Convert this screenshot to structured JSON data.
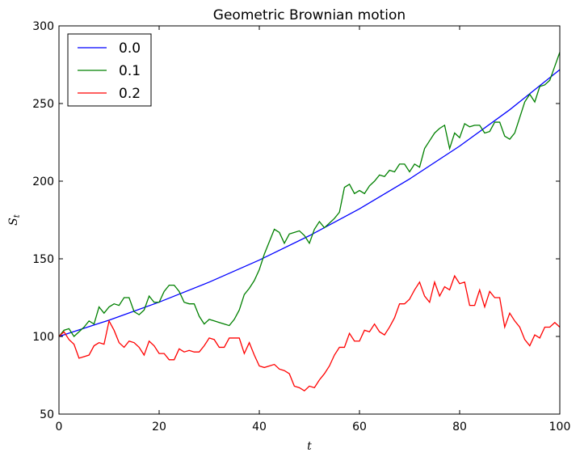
{
  "chart_data": {
    "type": "line",
    "title": "Geometric Brownian motion",
    "xlabel": "t",
    "ylabel_main": "S",
    "ylabel_sub": "t",
    "xlim": [
      0,
      100
    ],
    "ylim": [
      50,
      300
    ],
    "xticks": [
      0,
      20,
      40,
      60,
      80,
      100
    ],
    "yticks": [
      50,
      100,
      150,
      200,
      250,
      300
    ],
    "grid": false,
    "legend_position": "top-left",
    "series": [
      {
        "name": "0.0",
        "color": "#0000ff",
        "formula": "100*exp(0.01*t)",
        "x": [
          0,
          10,
          20,
          30,
          40,
          50,
          60,
          70,
          80,
          90,
          100
        ],
        "values": [
          100,
          110.5,
          122.1,
          135.0,
          149.2,
          164.9,
          182.2,
          201.4,
          222.6,
          246.0,
          271.8
        ]
      },
      {
        "name": "0.1",
        "color": "#008000",
        "x": [
          0,
          1,
          2,
          3,
          4,
          5,
          6,
          7,
          8,
          9,
          10,
          11,
          12,
          13,
          14,
          15,
          16,
          17,
          18,
          19,
          20,
          21,
          22,
          23,
          24,
          25,
          26,
          27,
          28,
          29,
          30,
          31,
          32,
          33,
          34,
          35,
          36,
          37,
          38,
          39,
          40,
          41,
          42,
          43,
          44,
          45,
          46,
          47,
          48,
          49,
          50,
          51,
          52,
          53,
          54,
          55,
          56,
          57,
          58,
          59,
          60,
          61,
          62,
          63,
          64,
          65,
          66,
          67,
          68,
          69,
          70,
          71,
          72,
          73,
          74,
          75,
          76,
          77,
          78,
          79,
          80,
          81,
          82,
          83,
          84,
          85,
          86,
          87,
          88,
          89,
          90,
          91,
          92,
          93,
          94,
          95,
          96,
          97,
          98,
          99,
          100
        ],
        "values": [
          100,
          104,
          105,
          100,
          103,
          106,
          110,
          108,
          119,
          115,
          119,
          121,
          120,
          125,
          125,
          116,
          114,
          117,
          126,
          122,
          122,
          129,
          133,
          133,
          129,
          122,
          121,
          121,
          113,
          108,
          111,
          110,
          109,
          108,
          107,
          111,
          117,
          127,
          131,
          136,
          143,
          153,
          161,
          169,
          167,
          160,
          166,
          167,
          168,
          165,
          160,
          169,
          174,
          170,
          173,
          176,
          180,
          196,
          198,
          192,
          194,
          192,
          197,
          200,
          204,
          203,
          207,
          206,
          211,
          211,
          206,
          211,
          209,
          221,
          226,
          231,
          234,
          236,
          221,
          231,
          228,
          237,
          235,
          236,
          236,
          231,
          232,
          238,
          238,
          229,
          227,
          231,
          241,
          251,
          256,
          251,
          261,
          262,
          265,
          274,
          283
        ]
      },
      {
        "name": "0.2",
        "color": "#ff0000",
        "x": [
          0,
          1,
          2,
          3,
          4,
          5,
          6,
          7,
          8,
          9,
          10,
          11,
          12,
          13,
          14,
          15,
          16,
          17,
          18,
          19,
          20,
          21,
          22,
          23,
          24,
          25,
          26,
          27,
          28,
          29,
          30,
          31,
          32,
          33,
          34,
          35,
          36,
          37,
          38,
          39,
          40,
          41,
          42,
          43,
          44,
          45,
          46,
          47,
          48,
          49,
          50,
          51,
          52,
          53,
          54,
          55,
          56,
          57,
          58,
          59,
          60,
          61,
          62,
          63,
          64,
          65,
          66,
          67,
          68,
          69,
          70,
          71,
          72,
          73,
          74,
          75,
          76,
          77,
          78,
          79,
          80,
          81,
          82,
          83,
          84,
          85,
          86,
          87,
          88,
          89,
          90,
          91,
          92,
          93,
          94,
          95,
          96,
          97,
          98,
          99,
          100
        ],
        "values": [
          100,
          103,
          98,
          95,
          86,
          87,
          88,
          94,
          96,
          95,
          110,
          104,
          96,
          93,
          97,
          96,
          93,
          88,
          97,
          94,
          89,
          89,
          85,
          85,
          92,
          90,
          91,
          90,
          90,
          94,
          99,
          98,
          93,
          93,
          99,
          99,
          99,
          89,
          96,
          88,
          81,
          80,
          81,
          82,
          79,
          78,
          76,
          68,
          67,
          65,
          68,
          67,
          72,
          76,
          81,
          88,
          93,
          93,
          102,
          97,
          97,
          104,
          103,
          108,
          103,
          101,
          106,
          112,
          121,
          121,
          124,
          130,
          135,
          126,
          122,
          135,
          126,
          132,
          130,
          139,
          134,
          135,
          120,
          120,
          130,
          119,
          129,
          125,
          125,
          106,
          115,
          110,
          106,
          98,
          94,
          101,
          99,
          106,
          106,
          109,
          106
        ]
      }
    ]
  }
}
